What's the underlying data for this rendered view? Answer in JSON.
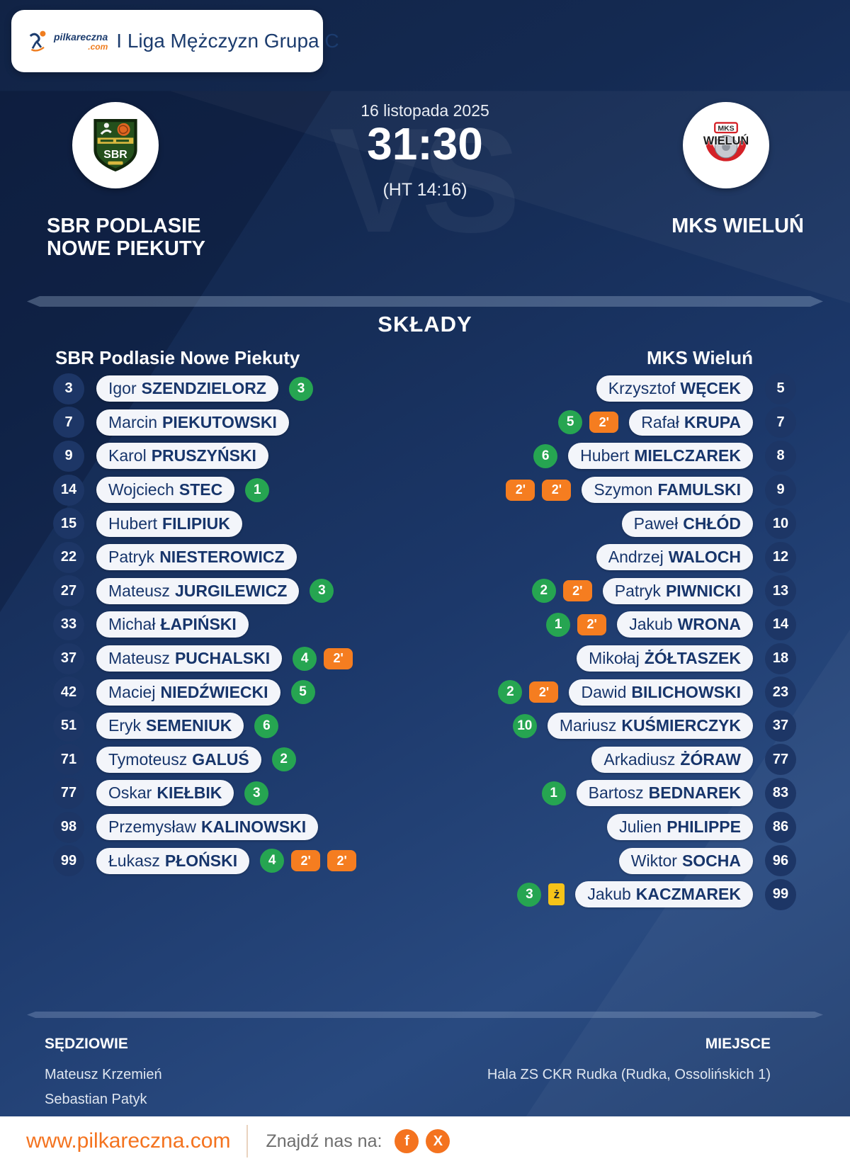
{
  "header": {
    "logo_text": "pilkareczna",
    "logo_suffix": ".com",
    "league": "I Liga Mężczyzn Grupa C"
  },
  "match": {
    "date": "16 listopada 2025",
    "score": "31:30",
    "halftime": "(HT 14:16)",
    "watermark": "VS",
    "home": {
      "name_line1": "SBR PODLASIE",
      "name_line2": "NOWE PIEKUTY",
      "crest_text": "SBR"
    },
    "away": {
      "name_line1": "MKS WIELUŃ",
      "name_line2": "",
      "crest_top": "MKS",
      "crest_main": "WIELUŃ"
    }
  },
  "rosters": {
    "title": "SKŁADY",
    "home_team": "SBR Podlasie Nowe Piekuty",
    "away_team": "MKS Wieluń",
    "badge_labels": {
      "two_min": "2'",
      "yellow": "ż"
    },
    "home_players": [
      {
        "number": "3",
        "first": "Igor",
        "last": "SZENDZIELORZ",
        "goals": "3",
        "two_min": 0,
        "yellow": false
      },
      {
        "number": "7",
        "first": "Marcin",
        "last": "PIEKUTOWSKI",
        "goals": null,
        "two_min": 0,
        "yellow": false
      },
      {
        "number": "9",
        "first": "Karol",
        "last": "PRUSZYŃSKI",
        "goals": null,
        "two_min": 0,
        "yellow": false
      },
      {
        "number": "14",
        "first": "Wojciech",
        "last": "STEC",
        "goals": "1",
        "two_min": 0,
        "yellow": false
      },
      {
        "number": "15",
        "first": "Hubert",
        "last": "FILIPIUK",
        "goals": null,
        "two_min": 0,
        "yellow": false
      },
      {
        "number": "22",
        "first": "Patryk",
        "last": "NIESTEROWICZ",
        "goals": null,
        "two_min": 0,
        "yellow": false
      },
      {
        "number": "27",
        "first": "Mateusz",
        "last": "JURGILEWICZ",
        "goals": "3",
        "two_min": 0,
        "yellow": false
      },
      {
        "number": "33",
        "first": "Michał",
        "last": "ŁAPIŃSKI",
        "goals": null,
        "two_min": 0,
        "yellow": false
      },
      {
        "number": "37",
        "first": "Mateusz",
        "last": "PUCHALSKI",
        "goals": "4",
        "two_min": 1,
        "yellow": false
      },
      {
        "number": "42",
        "first": "Maciej",
        "last": "NIEDŹWIECKI",
        "goals": "5",
        "two_min": 0,
        "yellow": false
      },
      {
        "number": "51",
        "first": "Eryk",
        "last": "SEMENIUK",
        "goals": "6",
        "two_min": 0,
        "yellow": false
      },
      {
        "number": "71",
        "first": "Tymoteusz",
        "last": "GALUŚ",
        "goals": "2",
        "two_min": 0,
        "yellow": false
      },
      {
        "number": "77",
        "first": "Oskar",
        "last": "KIEŁBIK",
        "goals": "3",
        "two_min": 0,
        "yellow": false
      },
      {
        "number": "98",
        "first": "Przemysław",
        "last": "KALINOWSKI",
        "goals": null,
        "two_min": 0,
        "yellow": false
      },
      {
        "number": "99",
        "first": "Łukasz",
        "last": "PŁOŃSKI",
        "goals": "4",
        "two_min": 2,
        "yellow": false
      }
    ],
    "away_players": [
      {
        "number": "5",
        "first": "Krzysztof",
        "last": "WĘCEK",
        "goals": null,
        "two_min": 0,
        "yellow": false
      },
      {
        "number": "7",
        "first": "Rafał",
        "last": "KRUPA",
        "goals": "5",
        "two_min": 1,
        "yellow": false
      },
      {
        "number": "8",
        "first": "Hubert",
        "last": "MIELCZAREK",
        "goals": "6",
        "two_min": 0,
        "yellow": false
      },
      {
        "number": "9",
        "first": "Szymon",
        "last": "FAMULSKI",
        "goals": null,
        "two_min": 2,
        "yellow": false
      },
      {
        "number": "10",
        "first": "Paweł",
        "last": "CHŁÓD",
        "goals": null,
        "two_min": 0,
        "yellow": false
      },
      {
        "number": "12",
        "first": "Andrzej",
        "last": "WALOCH",
        "goals": null,
        "two_min": 0,
        "yellow": false
      },
      {
        "number": "13",
        "first": "Patryk",
        "last": "PIWNICKI",
        "goals": "2",
        "two_min": 1,
        "yellow": false
      },
      {
        "number": "14",
        "first": "Jakub",
        "last": "WRONA",
        "goals": "1",
        "two_min": 1,
        "yellow": false
      },
      {
        "number": "18",
        "first": "Mikołaj",
        "last": "ŻÓŁTASZEK",
        "goals": null,
        "two_min": 0,
        "yellow": false
      },
      {
        "number": "23",
        "first": "Dawid",
        "last": "BILICHOWSKI",
        "goals": "2",
        "two_min": 1,
        "yellow": false
      },
      {
        "number": "37",
        "first": "Mariusz",
        "last": "KUŚMIERCZYK",
        "goals": "10",
        "two_min": 0,
        "yellow": false
      },
      {
        "number": "77",
        "first": "Arkadiusz",
        "last": "ŻÓRAW",
        "goals": null,
        "two_min": 0,
        "yellow": false
      },
      {
        "number": "83",
        "first": "Bartosz",
        "last": "BEDNAREK",
        "goals": "1",
        "two_min": 0,
        "yellow": false
      },
      {
        "number": "86",
        "first": "Julien",
        "last": "PHILIPPE",
        "goals": null,
        "two_min": 0,
        "yellow": false
      },
      {
        "number": "96",
        "first": "Wiktor",
        "last": "SOCHA",
        "goals": null,
        "two_min": 0,
        "yellow": false
      },
      {
        "number": "99",
        "first": "Jakub",
        "last": "KACZMAREK",
        "goals": "3",
        "two_min": 0,
        "yellow": true
      }
    ]
  },
  "officials": {
    "referees_label": "SĘDZIOWIE",
    "referees": [
      "Mateusz Krzemień",
      "Sebastian Patyk"
    ],
    "venue_label": "MIEJSCE",
    "venue": "Hala ZS CKR Rudka (Rudka, Ossolińskich 1)"
  },
  "footer": {
    "website": "www.pilkareczna.com",
    "find_us": "Znajdź nas na:",
    "facebook_label": "f",
    "x_label": "X"
  },
  "colors": {
    "green": "#26a551",
    "orange": "#f57d20",
    "yellow": "#f6c318",
    "navy_text": "#17356b",
    "footer_orange": "#f4731f"
  }
}
